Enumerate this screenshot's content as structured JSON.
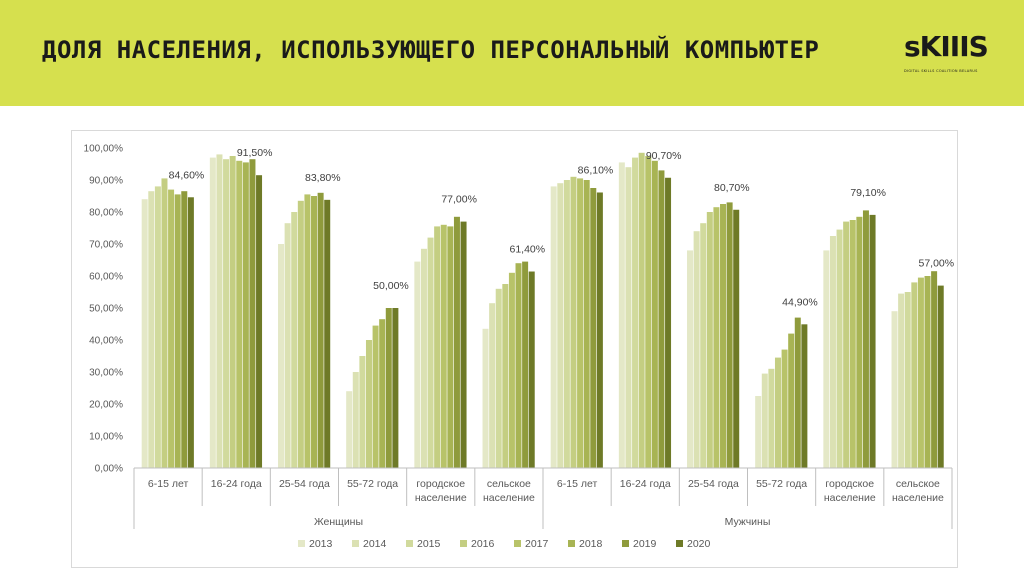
{
  "header": {
    "title": "ДОЛЯ НАСЕЛЕНИЯ, ИСПОЛЬЗУЮЩЕГО ПЕРСОНАЛЬНЫЙ КОМПЬЮТЕР",
    "logo_text": "sKIIIS",
    "logo_tagline": "DIGITAL SKILLS COALITION BELARUS",
    "background_color": "#d6e04e"
  },
  "chart_data": {
    "type": "bar",
    "yticks": [
      "0,00%",
      "10,00%",
      "20,00%",
      "30,00%",
      "40,00%",
      "50,00%",
      "60,00%",
      "70,00%",
      "80,00%",
      "90,00%",
      "100,00%"
    ],
    "ylim": [
      0,
      100
    ],
    "grid": false,
    "legend_position": "bottom",
    "groups": [
      {
        "name": "Женщины",
        "categories": [
          "6-15 лет",
          "16-24 года",
          "25-54 года",
          "55-72 года",
          "городское население",
          "сельское население"
        ]
      },
      {
        "name": "Мужчины",
        "categories": [
          "6-15 лет",
          "16-24 года",
          "25-54 года",
          "55-72 года",
          "городское население",
          "сельское население"
        ]
      }
    ],
    "series": [
      {
        "name": "2013",
        "color": "#e4e8c7",
        "values": [
          84.0,
          97.0,
          70.0,
          24.0,
          64.5,
          43.5,
          88.0,
          95.5,
          68.0,
          22.5,
          68.0,
          49.0
        ]
      },
      {
        "name": "2014",
        "color": "#dbe1b3",
        "values": [
          86.5,
          98.0,
          76.5,
          30.0,
          68.5,
          51.5,
          89.0,
          94.0,
          74.0,
          29.5,
          72.5,
          54.5
        ]
      },
      {
        "name": "2015",
        "color": "#d1da9d",
        "values": [
          88.0,
          96.5,
          80.0,
          35.0,
          72.0,
          56.0,
          90.0,
          97.0,
          76.5,
          31.0,
          74.5,
          55.0
        ]
      },
      {
        "name": "2016",
        "color": "#c4ce82",
        "values": [
          90.5,
          97.5,
          83.5,
          40.0,
          75.5,
          57.5,
          91.0,
          98.5,
          80.0,
          34.5,
          77.0,
          58.0
        ]
      },
      {
        "name": "2017",
        "color": "#b8c369",
        "values": [
          87.0,
          96.0,
          85.5,
          44.5,
          76.0,
          61.0,
          90.5,
          97.5,
          81.5,
          37.0,
          77.5,
          59.5
        ]
      },
      {
        "name": "2018",
        "color": "#a8b454",
        "values": [
          85.5,
          95.5,
          85.0,
          46.5,
          75.5,
          64.0,
          90.0,
          96.0,
          82.5,
          42.0,
          78.5,
          60.0
        ]
      },
      {
        "name": "2019",
        "color": "#8f9b3c",
        "values": [
          86.5,
          96.5,
          86.0,
          50.0,
          78.5,
          64.5,
          87.5,
          93.0,
          83.0,
          47.0,
          80.5,
          61.5
        ]
      },
      {
        "name": "2020",
        "color": "#6e7a27",
        "values": [
          84.6,
          91.5,
          83.8,
          50.0,
          77.0,
          61.4,
          86.1,
          90.7,
          80.7,
          44.9,
          79.1,
          57.0
        ]
      }
    ],
    "data_labels": [
      "84,60%",
      "91,50%",
      "83,80%",
      "50,00%",
      "77,00%",
      "61,40%",
      "86,10%",
      "90,70%",
      "80,70%",
      "44,90%",
      "79,10%",
      "57,00%"
    ]
  }
}
